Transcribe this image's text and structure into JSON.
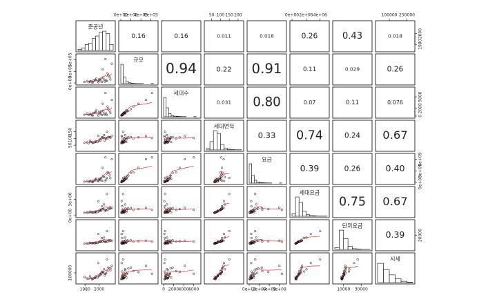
{
  "chart_data": {
    "type": "scatter_matrix",
    "point_color": "#000000",
    "smooth_color": "#e03030",
    "hist_color": "#ffffff",
    "variables": [
      {
        "name": "준공년",
        "lim": [
          1970,
          2020
        ],
        "xticks": [
          1980,
          2000
        ],
        "yticks": [
          1980,
          2000
        ],
        "hist": {
          "bins": [
            1970,
            1975,
            1980,
            1985,
            1990,
            1995,
            2000,
            2005,
            2010,
            2015,
            2020
          ],
          "counts": [
            5,
            10,
            25,
            30,
            50,
            60,
            75,
            80,
            70,
            25
          ]
        }
      },
      {
        "name": "규모",
        "lim": [
          0,
          700000
        ],
        "xticks": [
          {
            "value": 0,
            "label": "0e+00"
          },
          {
            "value": 200000,
            "label": "2e+05"
          },
          {
            "value": 400000,
            "label": "4e+05"
          },
          {
            "value": 600000,
            "label": "6e+05"
          }
        ],
        "yticks": [
          {
            "value": 0,
            "label": "0e+00"
          },
          {
            "value": 300000,
            "label": "3e+05"
          },
          {
            "value": 600000,
            "label": "6e+05"
          }
        ],
        "hist": {
          "bins": [
            0,
            50000,
            100000,
            150000,
            200000,
            250000,
            300000,
            350000,
            400000,
            450000,
            500000,
            550000,
            600000,
            650000,
            700000
          ],
          "counts": [
            180,
            60,
            20,
            8,
            4,
            2,
            1,
            1,
            1,
            0,
            0,
            0,
            1,
            0
          ]
        }
      },
      {
        "name": "세대수",
        "lim": [
          0,
          7000
        ],
        "xticks": [
          0,
          2000,
          4000,
          6000
        ],
        "yticks": [
          0,
          2000,
          5000
        ],
        "hist": {
          "bins": [
            0,
            500,
            1000,
            1500,
            2000,
            2500,
            3000,
            3500,
            4000,
            4500,
            5000,
            5500,
            6000,
            6500,
            7000
          ],
          "counts": [
            150,
            70,
            25,
            10,
            5,
            3,
            2,
            1,
            1,
            0,
            0,
            0,
            1,
            0
          ]
        }
      },
      {
        "name": "세대면적",
        "lim": [
          20,
          220
        ],
        "xticks": [
          50,
          100,
          150,
          200
        ],
        "yticks": [
          50,
          100,
          150
        ],
        "hist": {
          "bins": [
            20,
            40,
            60,
            80,
            100,
            120,
            140,
            160,
            180,
            200,
            220
          ],
          "counts": [
            10,
            60,
            140,
            120,
            40,
            12,
            5,
            2,
            1,
            1
          ]
        }
      },
      {
        "name": "요금",
        "lim": [
          0,
          7000000000
        ],
        "xticks": [
          {
            "value": 0,
            "label": "0e+00"
          },
          {
            "value": 2000000000,
            "label": "2e+09"
          },
          {
            "value": 4000000000,
            "label": "4e+09"
          },
          {
            "value": 6000000000,
            "label": "6e+09"
          }
        ],
        "yticks": [
          {
            "value": 0,
            "label": "0e+00"
          },
          {
            "value": 3000000000,
            "label": "3e+09"
          },
          {
            "value": 6000000000,
            "label": "6e+09"
          }
        ],
        "hist": {
          "bins": [
            0,
            500000000,
            1000000000,
            1500000000,
            2000000000,
            2500000000,
            3000000000,
            3500000000,
            4000000000,
            4500000000,
            5000000000,
            5500000000,
            6000000000,
            6500000000,
            7000000000
          ],
          "counts": [
            170,
            70,
            25,
            10,
            5,
            3,
            2,
            1,
            1,
            0,
            0,
            0,
            1,
            0
          ]
        }
      },
      {
        "name": "세대요금",
        "lim": [
          0,
          5000000
        ],
        "xticks": [
          {
            "value": 0,
            "label": "0e+00"
          },
          {
            "value": 2000000,
            "label": "2e+06"
          },
          {
            "value": 4000000,
            "label": "4e+06"
          }
        ],
        "yticks": [
          {
            "value": 0,
            "label": "0e+00"
          },
          {
            "value": 3000000,
            "label": "3e+06"
          }
        ],
        "hist": {
          "bins": [
            0,
            500000,
            1000000,
            1500000,
            2000000,
            2500000,
            3000000,
            3500000,
            4000000,
            4500000,
            5000000
          ],
          "counts": [
            20,
            150,
            110,
            40,
            12,
            5,
            3,
            1,
            1,
            1
          ]
        }
      },
      {
        "name": "단위요금",
        "lim": [
          0,
          40000
        ],
        "xticks": [
          10000,
          30000
        ],
        "yticks": [
          20000
        ],
        "hist": {
          "bins": [
            0,
            5000,
            10000,
            15000,
            20000,
            25000,
            30000,
            35000,
            40000
          ],
          "counts": [
            15,
            160,
            90,
            25,
            6,
            3,
            1,
            1
          ]
        }
      },
      {
        "name": "시세",
        "lim": [
          0,
          300000
        ],
        "xticks": [
          100000,
          250000
        ],
        "yticks": [
          100000
        ],
        "hist": {
          "bins": [
            0,
            50000,
            100000,
            150000,
            200000,
            250000,
            300000
          ],
          "counts": [
            150,
            100,
            60,
            30,
            10,
            3
          ]
        }
      }
    ],
    "correlations": {
      "values": [
        [
          0.16,
          0.16,
          0.011,
          0.018,
          0.26,
          0.43,
          0.018
        ],
        [
          0.94,
          0.22,
          0.91,
          0.11,
          0.029,
          0.26
        ],
        [
          0.031,
          0.8,
          0.07,
          0.11,
          0.076
        ],
        [
          0.33,
          0.74,
          0.24,
          0.67
        ],
        [
          0.39,
          0.26,
          0.4
        ],
        [
          0.75,
          0.67
        ],
        [
          0.39
        ]
      ],
      "value_labels": [
        [
          "0.16",
          "0.16",
          "0.011",
          "0.018",
          "0.26",
          "0.43",
          "0.018"
        ],
        [
          "0.94",
          "0.22",
          "0.91",
          "0.11",
          "0.029",
          "0.26"
        ],
        [
          "0.031",
          "0.80",
          "0.07",
          "0.11",
          "0.076"
        ],
        [
          "0.33",
          "0.74",
          "0.24",
          "0.67"
        ],
        [
          "0.39",
          "0.26",
          "0.40"
        ],
        [
          "0.75",
          "0.67"
        ],
        [
          "0.39"
        ]
      ]
    },
    "observations": [
      [
        1988,
        45000,
        600,
        75,
        400000000,
        650000,
        8500,
        45000
      ],
      [
        1995,
        80000,
        1000,
        80,
        750000000,
        750000,
        9000,
        60000
      ],
      [
        2003,
        120000,
        1300,
        95,
        1200000000,
        920000,
        9800,
        90000
      ],
      [
        2008,
        30000,
        350,
        85,
        300000000,
        860000,
        10000,
        70000
      ],
      [
        1992,
        60000,
        800,
        70,
        500000000,
        620000,
        8800,
        40000
      ],
      [
        2012,
        250000,
        2500,
        100,
        2600000000,
        1040000,
        10500,
        120000
      ],
      [
        1985,
        20000,
        300,
        65,
        150000000,
        500000,
        7600,
        35000
      ],
      [
        2000,
        95000,
        1100,
        85,
        900000000,
        820000,
        9500,
        65000
      ],
      [
        2015,
        150000,
        1400,
        110,
        1800000000,
        1290000,
        11800,
        150000
      ],
      [
        1998,
        40000,
        520,
        76,
        350000000,
        670000,
        8800,
        50000
      ],
      [
        2005,
        350000,
        3200,
        108,
        3800000000,
        1190000,
        11000,
        110000
      ],
      [
        1990,
        15000,
        200,
        72,
        120000000,
        600000,
        8200,
        30000
      ],
      [
        2010,
        70000,
        700,
        98,
        700000000,
        1000000,
        10200,
        95000
      ],
      [
        1979,
        25000,
        350,
        68,
        180000000,
        510000,
        7500,
        55000
      ],
      [
        2018,
        500000,
        4200,
        118,
        6000000000,
        1430000,
        12000,
        180000
      ],
      [
        2002,
        55000,
        650,
        85,
        600000000,
        920000,
        10900,
        80000
      ],
      [
        1996,
        110000,
        1500,
        73,
        950000000,
        630000,
        8700,
        48000
      ],
      [
        2007,
        85000,
        680,
        125,
        1400000000,
        2060000,
        16500,
        140000
      ],
      [
        1987,
        35000,
        420,
        83,
        310000000,
        740000,
        8900,
        62000
      ],
      [
        2013,
        200000,
        1800,
        111,
        2500000000,
        1390000,
        12500,
        160000
      ],
      [
        1999,
        18000,
        150,
        120,
        400000000,
        2670000,
        22000,
        210000
      ],
      [
        2011,
        45000,
        300,
        150,
        1200000000,
        4000000,
        26000,
        250000
      ],
      [
        1994,
        65000,
        900,
        72,
        520000000,
        580000,
        8000,
        42000
      ],
      [
        2006,
        130000,
        1250,
        104,
        1600000000,
        1280000,
        12300,
        100000
      ],
      [
        1983,
        50000,
        700,
        71,
        390000000,
        560000,
        7800,
        38000
      ],
      [
        2016,
        90000,
        850,
        106,
        1100000000,
        1290000,
        12200,
        130000
      ],
      [
        2004,
        28000,
        260,
        108,
        450000000,
        1730000,
        16000,
        115000
      ],
      [
        1991,
        12000,
        180,
        67,
        100000000,
        560000,
        8300,
        33000
      ],
      [
        2009,
        620000,
        6000,
        103,
        6500000000,
        1080000,
        10500,
        90000
      ],
      [
        2001,
        75000,
        780,
        96,
        800000000,
        1030000,
        10700,
        85000
      ]
    ]
  }
}
